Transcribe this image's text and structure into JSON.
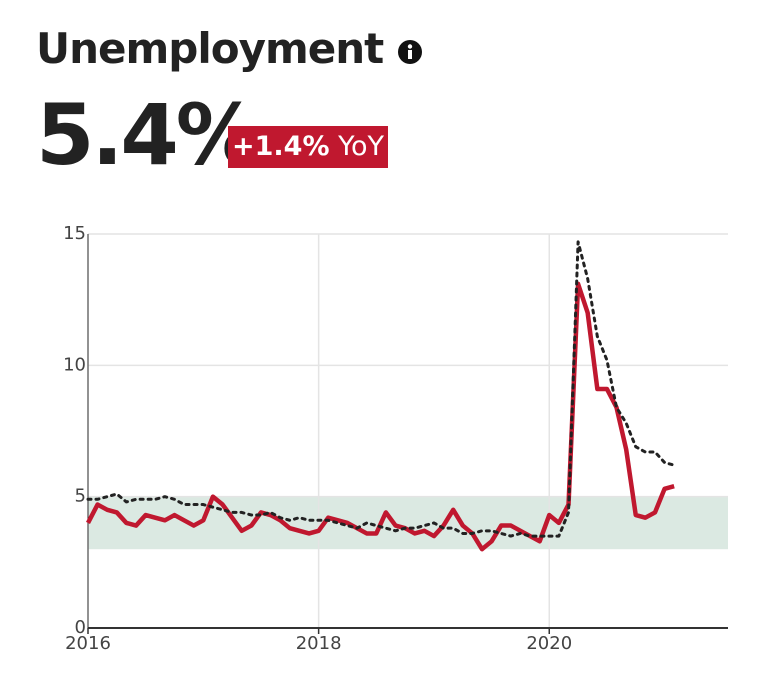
{
  "header": {
    "title": "Unemployment",
    "headline": "5.4%",
    "change": "+1.4%",
    "change_suffix": "YoY"
  },
  "chart_data": {
    "type": "line",
    "x": [
      2016,
      2016.083,
      2016.167,
      2016.25,
      2016.333,
      2016.417,
      2016.5,
      2016.583,
      2016.667,
      2016.75,
      2016.833,
      2016.917,
      2017,
      2017.083,
      2017.167,
      2017.25,
      2017.333,
      2017.417,
      2017.5,
      2017.583,
      2017.667,
      2017.75,
      2017.833,
      2017.917,
      2018,
      2018.083,
      2018.167,
      2018.25,
      2018.333,
      2018.417,
      2018.5,
      2018.583,
      2018.667,
      2018.75,
      2018.833,
      2018.917,
      2019,
      2019.083,
      2019.167,
      2019.25,
      2019.333,
      2019.417,
      2019.5,
      2019.583,
      2019.667,
      2019.75,
      2019.833,
      2019.917,
      2020,
      2020.083,
      2020.167,
      2020.25,
      2020.333,
      2020.417,
      2020.5,
      2020.583,
      2020.667,
      2020.75,
      2020.833,
      2020.917,
      2021,
      2021.083
    ],
    "series": [
      {
        "color": "#c0182f",
        "style": "solid",
        "values": [
          4.0,
          4.7,
          4.5,
          4.4,
          4.0,
          3.9,
          4.3,
          4.2,
          4.1,
          4.3,
          4.1,
          3.9,
          4.1,
          5.0,
          4.7,
          4.2,
          3.7,
          3.9,
          4.4,
          4.3,
          4.1,
          3.8,
          3.7,
          3.6,
          3.7,
          4.2,
          4.1,
          4.0,
          3.8,
          3.6,
          3.6,
          4.4,
          3.9,
          3.8,
          3.6,
          3.7,
          3.5,
          3.9,
          4.5,
          3.9,
          3.6,
          3.0,
          3.3,
          3.9,
          3.9,
          3.7,
          3.5,
          3.3,
          4.3,
          4.0,
          4.7,
          13.1,
          12.0,
          9.1,
          9.1,
          8.4,
          6.8,
          4.3,
          4.2,
          4.4,
          5.3,
          5.4
        ]
      },
      {
        "color": "#222222",
        "style": "dotted",
        "values": [
          4.9,
          4.9,
          5.0,
          5.1,
          4.8,
          4.9,
          4.9,
          4.9,
          5.0,
          4.9,
          4.7,
          4.7,
          4.7,
          4.6,
          4.5,
          4.4,
          4.4,
          4.3,
          4.3,
          4.4,
          4.2,
          4.1,
          4.2,
          4.1,
          4.1,
          4.1,
          4.0,
          3.9,
          3.8,
          4.0,
          3.9,
          3.8,
          3.7,
          3.8,
          3.8,
          3.9,
          4.0,
          3.8,
          3.8,
          3.6,
          3.6,
          3.7,
          3.7,
          3.6,
          3.5,
          3.6,
          3.5,
          3.5,
          3.5,
          3.5,
          4.4,
          14.7,
          13.3,
          11.1,
          10.2,
          8.4,
          7.8,
          6.9,
          6.7,
          6.7,
          6.3,
          6.2
        ]
      }
    ],
    "shaded_range": [
      3,
      5
    ],
    "shaded_color": "#dbe9e2",
    "xlim": [
      2016,
      2021.55
    ],
    "xticks": [
      2016,
      2018,
      2020
    ],
    "ylim": [
      0,
      15
    ],
    "yticks": [
      0,
      5,
      10,
      15
    ],
    "grid": true
  }
}
